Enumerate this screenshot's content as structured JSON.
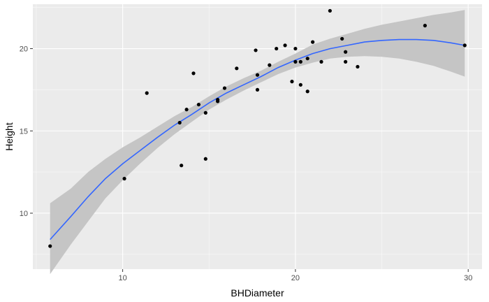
{
  "chart_data": {
    "type": "scatter",
    "title": "",
    "xlabel": "BHDiameter",
    "ylabel": "Height",
    "xlim": [
      4.8,
      30.8
    ],
    "ylim": [
      6.6,
      22.7
    ],
    "x_ticks": [
      10,
      20,
      30
    ],
    "y_ticks": [
      10,
      15,
      20
    ],
    "x_tick_labels": [
      "10",
      "20",
      "30"
    ],
    "y_tick_labels": [
      "10",
      "15",
      "20"
    ],
    "grid": true,
    "legend": "none",
    "points": [
      {
        "x": 5.8,
        "y": 8.0
      },
      {
        "x": 10.1,
        "y": 12.1
      },
      {
        "x": 11.4,
        "y": 17.3
      },
      {
        "x": 13.3,
        "y": 15.5
      },
      {
        "x": 13.4,
        "y": 12.9
      },
      {
        "x": 13.7,
        "y": 16.3
      },
      {
        "x": 14.1,
        "y": 18.5
      },
      {
        "x": 14.4,
        "y": 16.6
      },
      {
        "x": 14.8,
        "y": 16.1
      },
      {
        "x": 14.8,
        "y": 13.3
      },
      {
        "x": 15.5,
        "y": 16.8
      },
      {
        "x": 15.5,
        "y": 16.9
      },
      {
        "x": 15.9,
        "y": 17.6
      },
      {
        "x": 16.6,
        "y": 18.8
      },
      {
        "x": 17.7,
        "y": 19.9
      },
      {
        "x": 17.8,
        "y": 18.4
      },
      {
        "x": 17.8,
        "y": 17.5
      },
      {
        "x": 18.5,
        "y": 19.0
      },
      {
        "x": 18.9,
        "y": 20.0
      },
      {
        "x": 19.4,
        "y": 20.2
      },
      {
        "x": 19.8,
        "y": 18.0
      },
      {
        "x": 20.0,
        "y": 20.0
      },
      {
        "x": 20.0,
        "y": 19.2
      },
      {
        "x": 20.3,
        "y": 19.2
      },
      {
        "x": 20.3,
        "y": 17.8
      },
      {
        "x": 20.7,
        "y": 19.4
      },
      {
        "x": 20.7,
        "y": 17.4
      },
      {
        "x": 21.0,
        "y": 20.4
      },
      {
        "x": 21.5,
        "y": 19.2
      },
      {
        "x": 22.0,
        "y": 22.3
      },
      {
        "x": 22.7,
        "y": 20.6
      },
      {
        "x": 22.9,
        "y": 19.8
      },
      {
        "x": 22.9,
        "y": 19.2
      },
      {
        "x": 23.6,
        "y": 18.9
      },
      {
        "x": 27.5,
        "y": 21.4
      },
      {
        "x": 29.8,
        "y": 20.2
      }
    ],
    "smooth_curve": {
      "x": [
        5.8,
        7,
        8,
        9,
        10,
        11,
        12,
        13,
        14,
        15,
        16,
        17,
        18,
        19,
        20,
        21,
        22,
        23,
        24,
        25,
        26,
        27,
        28,
        29,
        29.8
      ],
      "y": [
        8.4,
        9.8,
        11.0,
        12.1,
        13.0,
        13.8,
        14.6,
        15.35,
        16.0,
        16.7,
        17.3,
        17.8,
        18.3,
        18.85,
        19.3,
        19.7,
        20.0,
        20.2,
        20.4,
        20.5,
        20.55,
        20.55,
        20.5,
        20.35,
        20.2
      ],
      "lower": [
        6.3,
        8.1,
        9.5,
        10.9,
        12.0,
        13.0,
        13.95,
        14.8,
        15.55,
        16.3,
        16.9,
        17.45,
        17.95,
        18.45,
        18.85,
        19.15,
        19.4,
        19.5,
        19.55,
        19.5,
        19.4,
        19.2,
        18.95,
        18.6,
        18.3
      ],
      "upper": [
        10.6,
        11.5,
        12.5,
        13.3,
        14.0,
        14.6,
        15.25,
        15.9,
        16.45,
        17.1,
        17.7,
        18.2,
        18.65,
        19.2,
        19.7,
        20.25,
        20.6,
        20.9,
        21.2,
        21.45,
        21.65,
        21.85,
        22.05,
        22.2,
        22.35
      ]
    },
    "colors": {
      "panel": "#ebebeb",
      "grid_major": "#ffffff",
      "point": "#000000",
      "line": "#3366ff",
      "ribbon": "#c5c5c5",
      "tick": "#333333"
    }
  }
}
